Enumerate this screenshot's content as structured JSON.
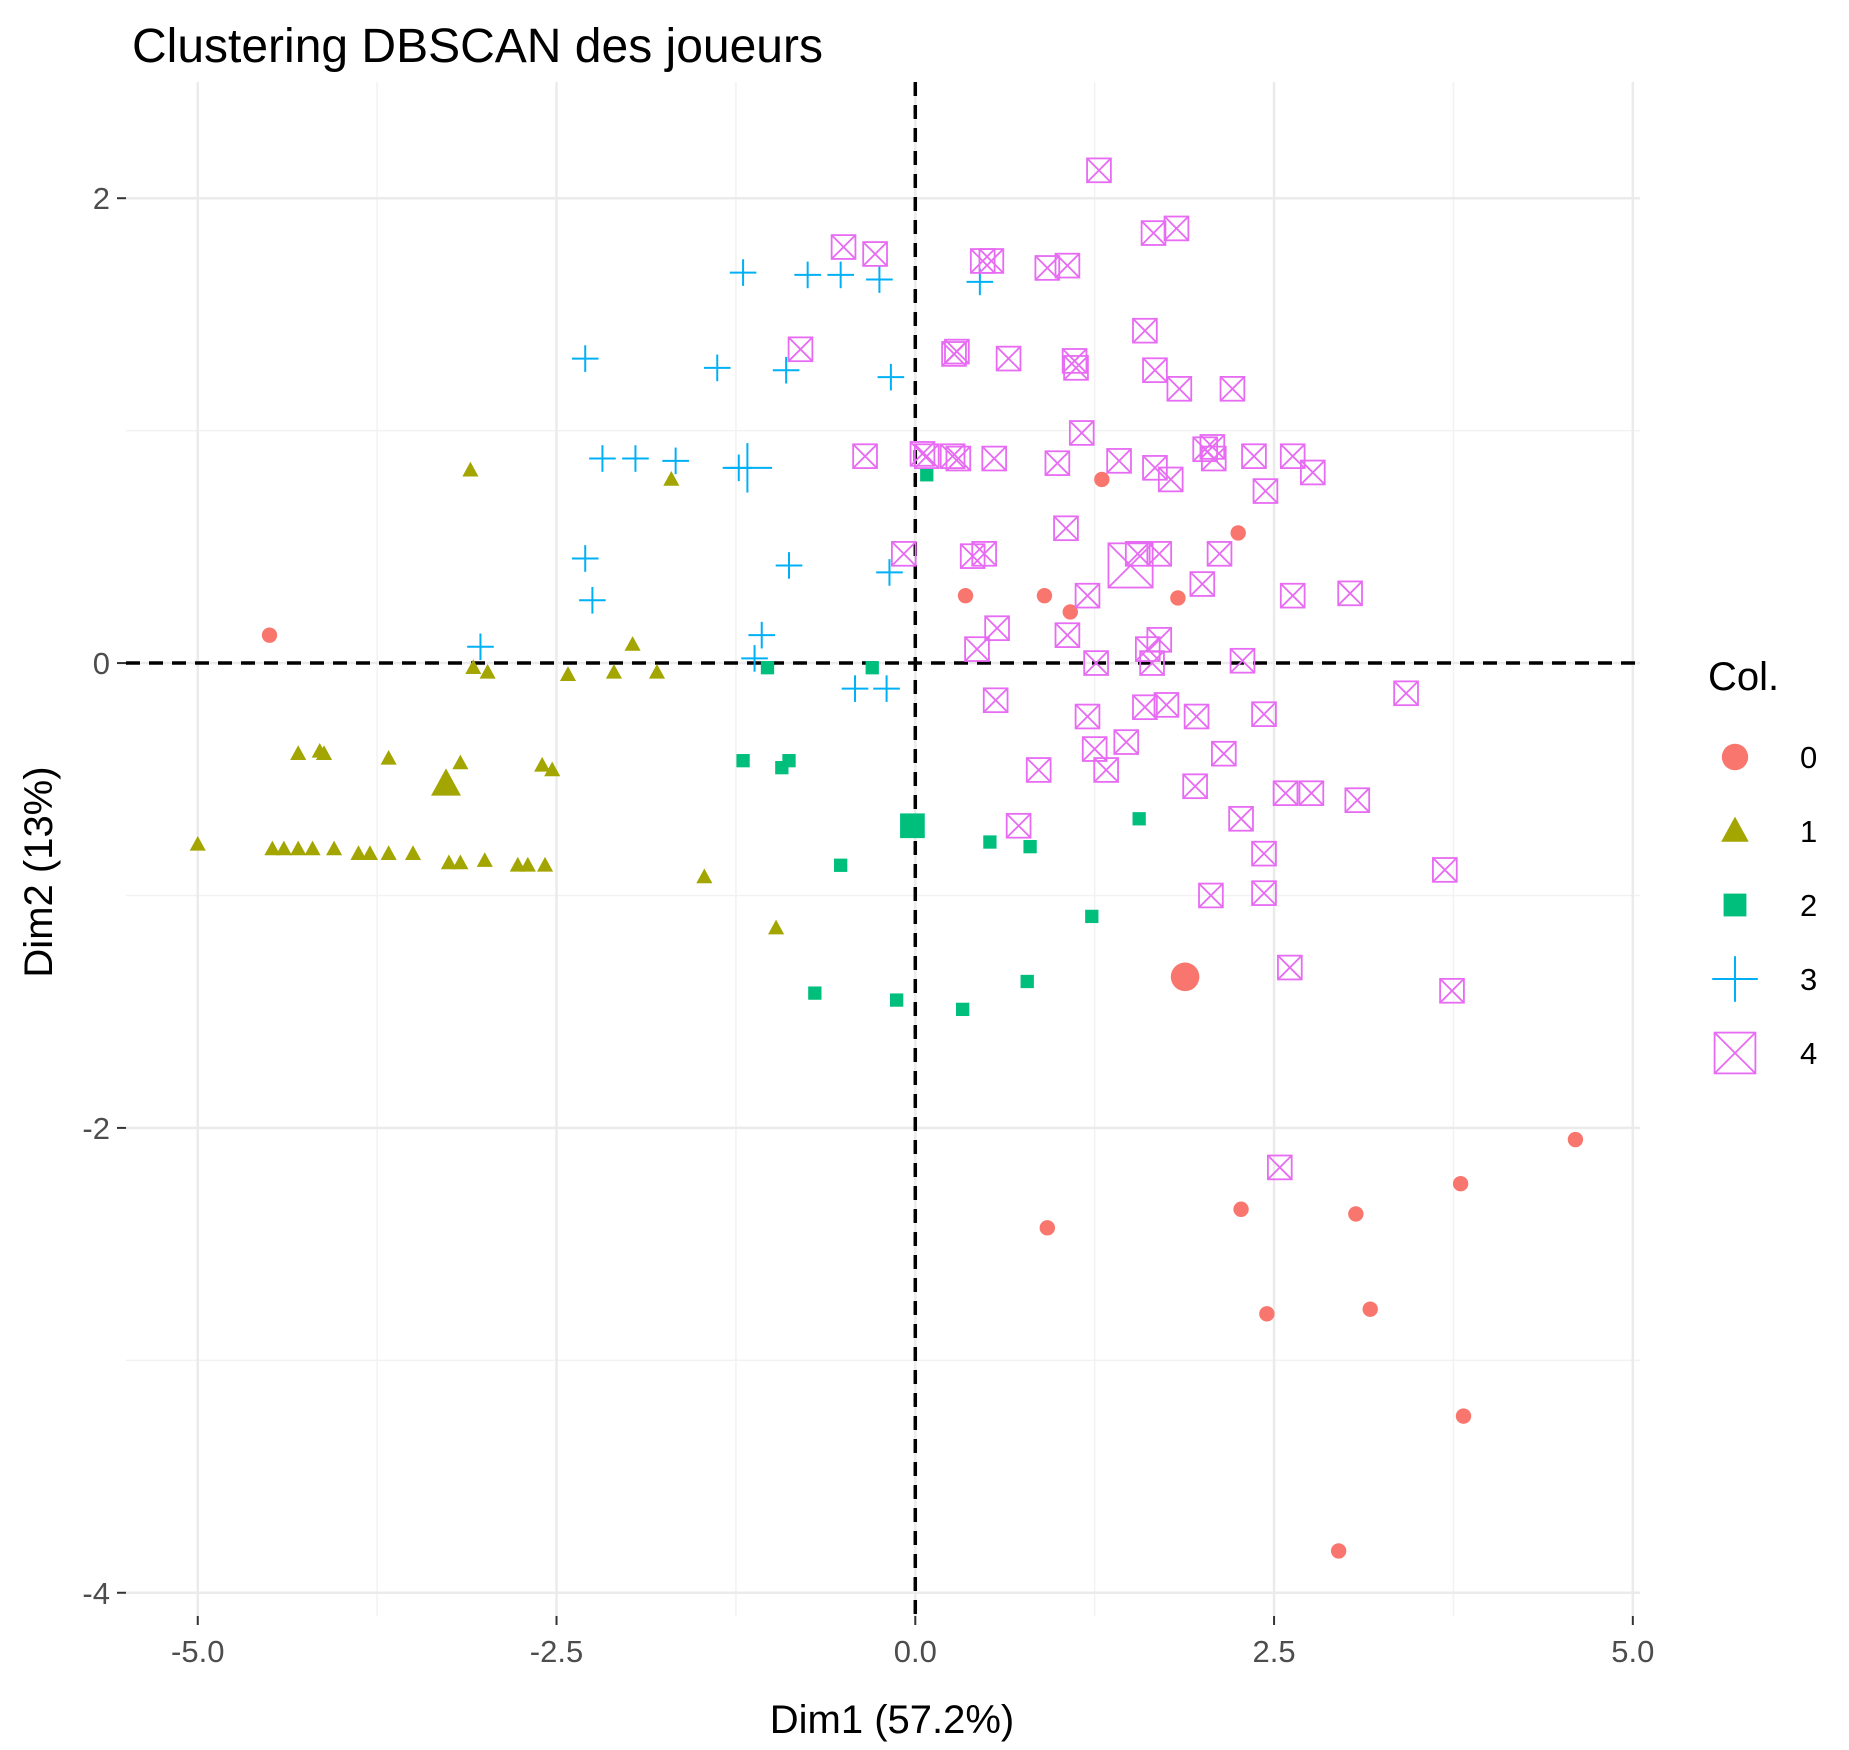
{
  "chart_data": {
    "type": "scatter",
    "title": "Clustering DBSCAN des joueurs",
    "xlabel": "Dim1 (57.2%)",
    "ylabel": "Dim2 (13%)",
    "xlim": [
      -5.5,
      5.05
    ],
    "ylim": [
      -4.0,
      2.5
    ],
    "x_ticks": [
      -5.0,
      -2.5,
      0.0,
      2.5,
      5.0
    ],
    "x_tick_labels": [
      "-5.0",
      "-2.5",
      "0.0",
      "2.5",
      "5.0"
    ],
    "y_ticks": [
      -4,
      -2,
      0,
      2
    ],
    "y_tick_labels": [
      "-4",
      "-2",
      "0",
      "2"
    ],
    "grid": true,
    "reference_lines": {
      "x": 0,
      "y": 0,
      "style": "dashed"
    },
    "legend": {
      "title": "Col.",
      "position": "right"
    },
    "series": [
      {
        "name": "0",
        "shape": "circle",
        "color": "#F8766D",
        "points": [
          [
            -4.5,
            0.12
          ],
          [
            1.3,
            0.79
          ],
          [
            2.25,
            0.56
          ],
          [
            0.35,
            0.29
          ],
          [
            0.9,
            0.29
          ],
          [
            1.08,
            0.22
          ],
          [
            1.83,
            0.28
          ],
          [
            4.6,
            -2.05
          ],
          [
            3.8,
            -2.24
          ],
          [
            2.27,
            -2.35
          ],
          [
            3.07,
            -2.37
          ],
          [
            0.92,
            -2.43
          ],
          [
            2.45,
            -2.8
          ],
          [
            3.17,
            -2.78
          ],
          [
            3.82,
            -3.24
          ],
          [
            2.95,
            -3.82
          ]
        ],
        "centroid": [
          1.88,
          -1.35
        ]
      },
      {
        "name": "1",
        "shape": "triangle",
        "color": "#A3A500",
        "points": [
          [
            -3.1,
            0.83
          ],
          [
            -1.7,
            0.79
          ],
          [
            -1.97,
            0.08
          ],
          [
            -3.08,
            -0.02
          ],
          [
            -2.98,
            -0.04
          ],
          [
            -2.42,
            -0.05
          ],
          [
            -2.1,
            -0.04
          ],
          [
            -1.8,
            -0.04
          ],
          [
            -4.3,
            -0.39
          ],
          [
            -4.15,
            -0.38
          ],
          [
            -4.12,
            -0.39
          ],
          [
            -3.67,
            -0.41
          ],
          [
            -3.17,
            -0.43
          ],
          [
            -2.6,
            -0.44
          ],
          [
            -2.53,
            -0.46
          ],
          [
            -5.0,
            -0.78
          ],
          [
            -4.48,
            -0.8
          ],
          [
            -4.4,
            -0.8
          ],
          [
            -4.3,
            -0.8
          ],
          [
            -4.2,
            -0.8
          ],
          [
            -4.05,
            -0.8
          ],
          [
            -3.88,
            -0.82
          ],
          [
            -3.8,
            -0.82
          ],
          [
            -3.67,
            -0.82
          ],
          [
            -3.5,
            -0.82
          ],
          [
            -3.25,
            -0.86
          ],
          [
            -3.17,
            -0.86
          ],
          [
            -3.0,
            -0.85
          ],
          [
            -2.77,
            -0.87
          ],
          [
            -2.7,
            -0.87
          ],
          [
            -2.58,
            -0.87
          ],
          [
            -1.47,
            -0.92
          ],
          [
            -0.97,
            -1.14
          ]
        ],
        "centroid": [
          -3.27,
          -0.52
        ]
      },
      {
        "name": "2",
        "shape": "square",
        "color": "#00BF7D",
        "points": [
          [
            0.08,
            0.81
          ],
          [
            -1.03,
            -0.02
          ],
          [
            -0.3,
            -0.02
          ],
          [
            -1.2,
            -0.42
          ],
          [
            -0.88,
            -0.42
          ],
          [
            -0.93,
            -0.45
          ],
          [
            1.56,
            -0.67
          ],
          [
            0.52,
            -0.77
          ],
          [
            0.8,
            -0.79
          ],
          [
            -0.52,
            -0.87
          ],
          [
            1.23,
            -1.09
          ],
          [
            0.78,
            -1.37
          ],
          [
            -0.7,
            -1.42
          ],
          [
            -0.13,
            -1.45
          ],
          [
            0.33,
            -1.49
          ]
        ],
        "centroid": [
          -0.02,
          -0.7
        ]
      },
      {
        "name": "3",
        "shape": "plus",
        "color": "#00B0F6",
        "points": [
          [
            -1.2,
            1.68
          ],
          [
            -0.75,
            1.67
          ],
          [
            -0.52,
            1.67
          ],
          [
            -0.25,
            1.65
          ],
          [
            0.45,
            1.64
          ],
          [
            -2.3,
            1.31
          ],
          [
            -1.38,
            1.27
          ],
          [
            -0.9,
            1.26
          ],
          [
            -0.17,
            1.23
          ],
          [
            -2.18,
            0.88
          ],
          [
            -1.95,
            0.88
          ],
          [
            -1.67,
            0.87
          ],
          [
            -1.23,
            0.84
          ],
          [
            -0.88,
            0.42
          ],
          [
            -2.3,
            0.45
          ],
          [
            -0.18,
            0.39
          ],
          [
            -2.25,
            0.27
          ],
          [
            -1.07,
            0.12
          ],
          [
            -3.03,
            0.07
          ],
          [
            -1.12,
            0.02
          ],
          [
            -0.42,
            -0.11
          ],
          [
            -0.2,
            -0.11
          ]
        ],
        "centroid": [
          -1.17,
          0.84
        ]
      },
      {
        "name": "4",
        "shape": "square-cross",
        "color": "#E76BF3",
        "points": [
          [
            1.28,
            2.12
          ],
          [
            1.66,
            1.85
          ],
          [
            1.82,
            1.87
          ],
          [
            -0.5,
            1.79
          ],
          [
            -0.28,
            1.76
          ],
          [
            0.47,
            1.73
          ],
          [
            0.53,
            1.73
          ],
          [
            0.92,
            1.7
          ],
          [
            1.06,
            1.71
          ],
          [
            -0.8,
            1.35
          ],
          [
            0.27,
            1.33
          ],
          [
            0.29,
            1.34
          ],
          [
            0.65,
            1.31
          ],
          [
            1.11,
            1.3
          ],
          [
            1.12,
            1.27
          ],
          [
            1.6,
            1.43
          ],
          [
            1.67,
            1.26
          ],
          [
            1.84,
            1.18
          ],
          [
            2.21,
            1.18
          ],
          [
            1.16,
            0.99
          ],
          [
            0.05,
            0.9
          ],
          [
            0.08,
            0.89
          ],
          [
            0.26,
            0.89
          ],
          [
            0.3,
            0.88
          ],
          [
            0.55,
            0.88
          ],
          [
            0.99,
            0.86
          ],
          [
            1.42,
            0.87
          ],
          [
            1.67,
            0.84
          ],
          [
            1.78,
            0.79
          ],
          [
            2.02,
            0.92
          ],
          [
            2.07,
            0.93
          ],
          [
            2.08,
            0.88
          ],
          [
            2.36,
            0.89
          ],
          [
            2.63,
            0.89
          ],
          [
            2.77,
            0.82
          ],
          [
            2.44,
            0.74
          ],
          [
            -0.35,
            0.89
          ],
          [
            1.05,
            0.58
          ],
          [
            -0.08,
            0.47
          ],
          [
            0.4,
            0.46
          ],
          [
            0.48,
            0.47
          ],
          [
            1.55,
            0.47
          ],
          [
            1.7,
            0.47
          ],
          [
            2.12,
            0.47
          ],
          [
            1.2,
            0.29
          ],
          [
            2.0,
            0.34
          ],
          [
            2.63,
            0.29
          ],
          [
            3.03,
            0.3
          ],
          [
            0.57,
            0.15
          ],
          [
            1.06,
            0.12
          ],
          [
            1.7,
            0.1
          ],
          [
            1.62,
            0.06
          ],
          [
            0.43,
            0.06
          ],
          [
            1.26,
            0.0
          ],
          [
            1.65,
            0.0
          ],
          [
            2.28,
            0.01
          ],
          [
            3.42,
            -0.13
          ],
          [
            0.56,
            -0.16
          ],
          [
            1.6,
            -0.19
          ],
          [
            1.75,
            -0.18
          ],
          [
            1.2,
            -0.23
          ],
          [
            1.96,
            -0.23
          ],
          [
            2.43,
            -0.22
          ],
          [
            1.47,
            -0.34
          ],
          [
            1.25,
            -0.37
          ],
          [
            2.15,
            -0.39
          ],
          [
            0.86,
            -0.46
          ],
          [
            1.33,
            -0.46
          ],
          [
            1.95,
            -0.53
          ],
          [
            2.58,
            -0.56
          ],
          [
            2.76,
            -0.56
          ],
          [
            3.08,
            -0.59
          ],
          [
            0.72,
            -0.7
          ],
          [
            2.27,
            -0.67
          ],
          [
            2.43,
            -0.82
          ],
          [
            3.69,
            -0.89
          ],
          [
            2.06,
            -1.0
          ],
          [
            2.43,
            -0.99
          ],
          [
            2.61,
            -1.31
          ],
          [
            3.74,
            -1.41
          ],
          [
            2.54,
            -2.17
          ]
        ],
        "centroid": [
          1.5,
          0.42
        ]
      }
    ]
  }
}
